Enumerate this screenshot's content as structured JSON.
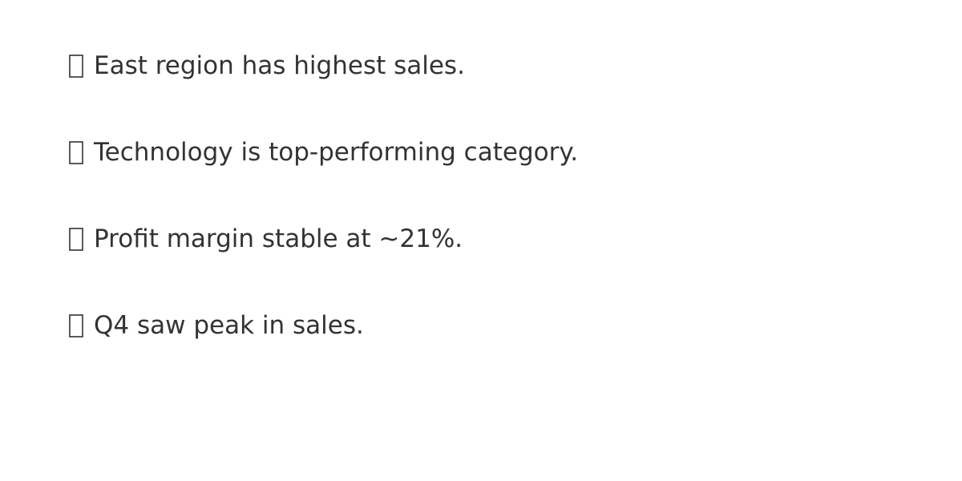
{
  "insights": [
    {
      "icon": "missing-glyph-icon",
      "text": "East region has highest sales."
    },
    {
      "icon": "missing-glyph-icon",
      "text": "Technology is top-performing category."
    },
    {
      "icon": "missing-glyph-icon",
      "text": "Profit margin stable at ~21%."
    },
    {
      "icon": "missing-glyph-icon",
      "text": "Q4 saw peak in sales."
    }
  ]
}
